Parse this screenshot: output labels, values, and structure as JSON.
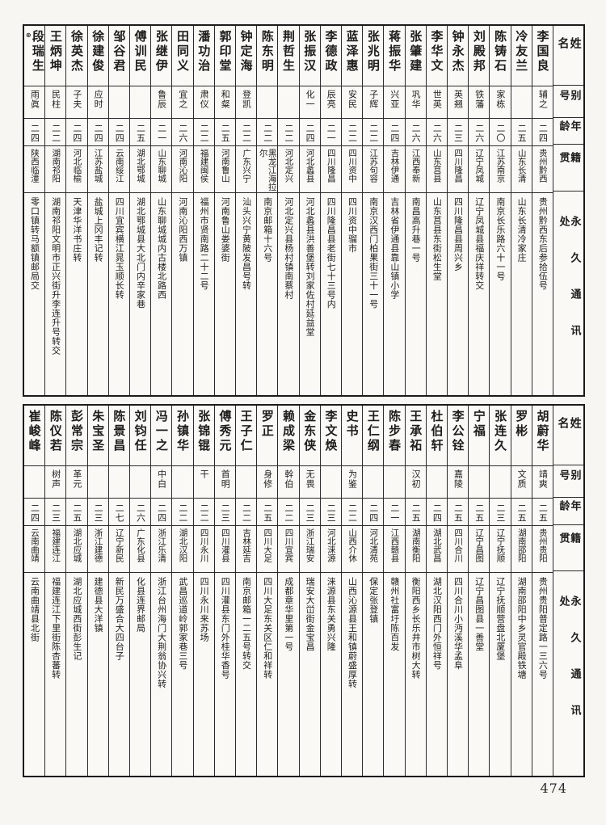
{
  "page": {
    "number": "474"
  },
  "headers": {
    "name": "姓名",
    "alias": "别号",
    "age": "年龄",
    "native": "籍贯",
    "address": "永久通讯处"
  },
  "sections": [
    {
      "id": "top",
      "people": [
        {
          "name": "李国良",
          "alias": "辅之",
          "age": "二四",
          "native": "贵州黔西",
          "address": "贵州黔西东后参拾伍号"
        },
        {
          "name": "冷友兰",
          "alias": "",
          "age": "二五",
          "native": "山东长清",
          "address": "山东长清冷家庄"
        },
        {
          "name": "陈铸石",
          "alias": "家栋",
          "age": "二〇",
          "native": "江苏南京",
          "address": "南京长乐路六十一号"
        },
        {
          "name": "刘殿邦",
          "alias": "铁藩",
          "age": "二六",
          "native": "辽宁凤城",
          "address": "辽宁凤城县福庆祥转交"
        },
        {
          "name": "钟永杰",
          "alias": "英翘",
          "age": "二三",
          "native": "四川隆昌",
          "address": "四川隆昌县周兴乡"
        },
        {
          "name": "李华文",
          "alias": "世英",
          "age": "二六",
          "native": "山东莒县",
          "address": "山东莒县东街松生堂"
        },
        {
          "name": "张肇建",
          "alias": "巩华",
          "age": "二六",
          "native": "江西奉新",
          "address": "南昌高升巷一号"
        },
        {
          "name": "蒋振华",
          "alias": "兴亚",
          "age": "二四",
          "native": "吉林伊通",
          "address": "吉林省伊通县靠山镇小学"
        },
        {
          "name": "张兆明",
          "alias": "子辉",
          "age": "二二",
          "native": "江苏句容",
          "address": "南京汉西门柏果街三十一号"
        },
        {
          "name": "蓝泽惠",
          "alias": "安民",
          "age": "二二",
          "native": "四川资中",
          "address": "四川资中骝市"
        },
        {
          "name": "李德政",
          "alias": "辰亮",
          "age": "二一",
          "native": "四川隆昌",
          "address": "四川隆昌县老街七十三号内"
        },
        {
          "name": "张振汉",
          "alias": "化一",
          "age": "二四",
          "native": "河北蠡县",
          "address": "河北蠡县洪善堡转刘家佐村延益堂"
        },
        {
          "name": "荆哲生",
          "alias": "",
          "age": "二二",
          "native": "河北定兴",
          "address": "河北定兴县杨村镇南蔡村"
        },
        {
          "name": "陈东明",
          "alias": "",
          "age": "二二",
          "native": "黑龙江海拉尔",
          "address": "南京邮箱十六号"
        },
        {
          "name": "钟定海",
          "alias": "登凯",
          "age": "二二",
          "native": "广东兴宁",
          "address": "汕头兴宁黄陂发昌号转"
        },
        {
          "name": "郭印堂",
          "alias": "和粲",
          "age": "二五",
          "native": "河南鲁山",
          "address": "河南鲁山娄婆街"
        },
        {
          "name": "潘功治",
          "alias": "肃仪",
          "age": "二二",
          "native": "福建闽侯",
          "address": "福州市贤南路二十二号"
        },
        {
          "name": "田同义",
          "alias": "宜之",
          "age": "二六",
          "native": "河南沁阳",
          "address": "河南沁阳西万镇"
        },
        {
          "name": "张继伊",
          "alias": "鲁辰",
          "age": "二一",
          "native": "山东聊城",
          "address": "山东聊城城内古楼北路西"
        },
        {
          "name": "傅训民",
          "alias": "",
          "age": "二五",
          "native": "湖北鄂城",
          "address": "湖北鄂城县大北门内辛家巷"
        },
        {
          "name": "邹谷君",
          "alias": "",
          "age": "二四",
          "native": "云南绥江",
          "address": "四川宜宾横江晁玉顺长转"
        },
        {
          "name": "徐建俊",
          "alias": "应时",
          "age": "二四",
          "native": "江苏盐城",
          "address": "盐城上冈丰记转"
        },
        {
          "name": "徐英杰",
          "alias": "子夫",
          "age": "二四",
          "native": "河北临榆",
          "address": "天津华洋书庄转"
        },
        {
          "name": "王炳坤",
          "alias": "民柱",
          "age": "二二",
          "native": "湖南祁阳",
          "address": "湖南祁阳文明市正兴街升李连升号转交"
        },
        {
          "name": "段瑞生",
          "mark": "⊛",
          "alias": "雨眞",
          "age": "二四",
          "native": "陕西临潼",
          "address": "零口镇转马额镇邮局交"
        }
      ]
    },
    {
      "id": "bottom",
      "people": [
        {
          "name": "胡蔚华",
          "alias": "靖爽",
          "age": "二五",
          "native": "贵州贵阳",
          "address": "贵州贵阳普定路一三六号"
        },
        {
          "name": "罗彬",
          "alias": "文质",
          "age": "二五",
          "native": "湖南邵阳",
          "address": "湖南邵阳中乡灵官殿铁塘"
        },
        {
          "name": "张连久",
          "alias": "",
          "age": "二三",
          "native": "辽宁抚顺",
          "address": "辽宁抚顺营盘北厦堡"
        },
        {
          "name": "宁福",
          "alias": "",
          "age": "二五",
          "native": "辽宁昌图",
          "address": "辽宁昌图县一善堂"
        },
        {
          "name": "李公铨",
          "alias": "嘉陵",
          "age": "二五",
          "native": "四川合川",
          "address": "四川合川小沔溪华孟阜"
        },
        {
          "name": "杜伯轩",
          "alias": "",
          "age": "二四",
          "native": "湖北武昌",
          "address": "湖北汉阳西门外恒祥号"
        },
        {
          "name": "王承祏",
          "alias": "汉初",
          "age": "二五",
          "native": "湖南衡阳",
          "address": "衡阳西乡长乐井市树大转"
        },
        {
          "name": "陈步春",
          "alias": "",
          "age": "二一",
          "native": "江西赣县",
          "address": "赣州社富圩陈百发"
        },
        {
          "name": "王仁纲",
          "alias": "",
          "age": "二四",
          "native": "河北清苑",
          "address": "保定张登镇"
        },
        {
          "name": "史书",
          "alias": "为鉴",
          "age": "二二",
          "native": "山西介休",
          "address": "山西沁源县王和镇蔚盛厚转"
        },
        {
          "name": "李文焕",
          "alias": "",
          "age": "二三",
          "native": "河北涞源",
          "address": "涞源县东关勇兴隆"
        },
        {
          "name": "金东侠",
          "alias": "无畏",
          "age": "二三",
          "native": "浙江瑞安",
          "address": "瑞安大峃街金宝昌"
        },
        {
          "name": "赖成梁",
          "alias": "幹伯",
          "age": "二二",
          "native": "四川宜宾",
          "address": "成都章华里第一号"
        },
        {
          "name": "罗正",
          "alias": "身修",
          "age": "二五",
          "native": "四川大足",
          "address": "四川大足东关区仁和祥转"
        },
        {
          "name": "王子仁",
          "alias": "",
          "age": "二二",
          "native": "吉林延吉",
          "address": "南京邮箱一二五号转交"
        },
        {
          "name": "傅秀元",
          "alias": "首明",
          "age": "二三",
          "native": "四川灌县",
          "address": "四川灌县东门外桂华香号"
        },
        {
          "name": "张锦锟",
          "alias": "干",
          "age": "二二",
          "native": "四川永川",
          "address": "四川永川来苏场"
        },
        {
          "name": "孙镇华",
          "alias": "",
          "age": "二二",
          "native": "湖北汉阳",
          "address": "武昌巡道岭郭家巷三号"
        },
        {
          "name": "冯一之",
          "alias": "中白",
          "age": "二四",
          "native": "浙江乐清",
          "address": "浙江台州海门大荆翁协兴转"
        },
        {
          "name": "刘钧任",
          "alias": "",
          "age": "二六",
          "native": "广东化县",
          "address": "化县连界邮局"
        },
        {
          "name": "陈景昌",
          "alias": "",
          "age": "二七",
          "native": "辽宁新民",
          "address": "新民万盛合大四台子"
        },
        {
          "name": "朱宝圣",
          "alias": "",
          "age": "二三",
          "native": "浙江建德",
          "address": "建德县大洋镇"
        },
        {
          "name": "彭常宗",
          "alias": "革元",
          "age": "二五",
          "native": "湖北应城",
          "address": "湖北应城西街彭生记"
        },
        {
          "name": "陈仪若",
          "alias": "树声",
          "age": "二三",
          "native": "福建连江",
          "address": "福建连江下里街陈杏蕃转"
        },
        {
          "name": "崔峻峰",
          "alias": "",
          "age": "二四",
          "native": "云南曲靖",
          "address": "云南曲靖县北街"
        }
      ]
    }
  ]
}
